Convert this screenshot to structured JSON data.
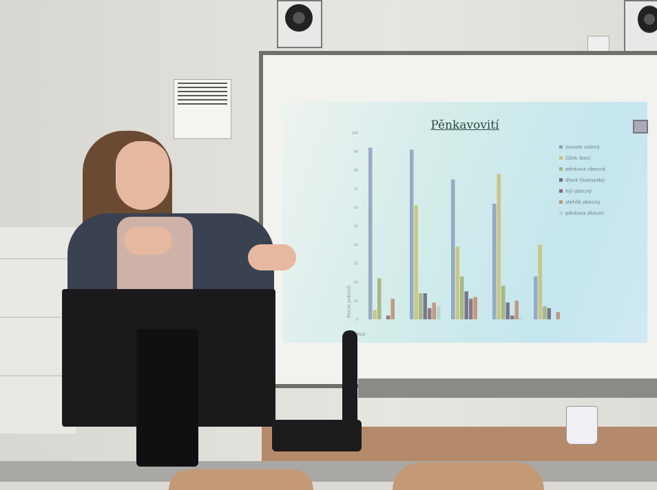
{
  "scene": {
    "description_free": true
  },
  "slide": {
    "title": "Pěnkavovití"
  },
  "chart_data": {
    "type": "bar",
    "title": "Pěnkavovití",
    "xlabel": "Rok",
    "ylabel": "Počet jedinců",
    "ylim": [
      0,
      100
    ],
    "yticks": [
      0,
      10,
      20,
      30,
      40,
      50,
      60,
      70,
      80,
      90,
      100
    ],
    "grid": false,
    "legend": "right",
    "categories": [
      "",
      "",
      "",
      "",
      ""
    ],
    "series": [
      {
        "name": "zvonek zelený",
        "color": "#8fa3bf",
        "values": [
          92,
          91,
          75,
          62,
          23
        ]
      },
      {
        "name": "čížek lesní",
        "color": "#c9c27a",
        "values": [
          5,
          61,
          39,
          78,
          40
        ]
      },
      {
        "name": "pěnkava obecná",
        "color": "#a3b27a",
        "values": [
          22,
          14,
          23,
          18,
          7
        ]
      },
      {
        "name": "dlask tlustozobý",
        "color": "#6e6c84",
        "values": [
          0,
          14,
          15,
          9,
          6
        ]
      },
      {
        "name": "hýl obecný",
        "color": "#8c6a70",
        "values": [
          2,
          6,
          11,
          2,
          0
        ]
      },
      {
        "name": "stehlík obecný",
        "color": "#c0907a",
        "values": [
          11,
          9,
          12,
          10,
          4
        ]
      },
      {
        "name": "pěnkava jikavec",
        "color": "#bccfcf",
        "values": [
          0,
          7,
          0,
          1,
          0
        ]
      }
    ]
  }
}
